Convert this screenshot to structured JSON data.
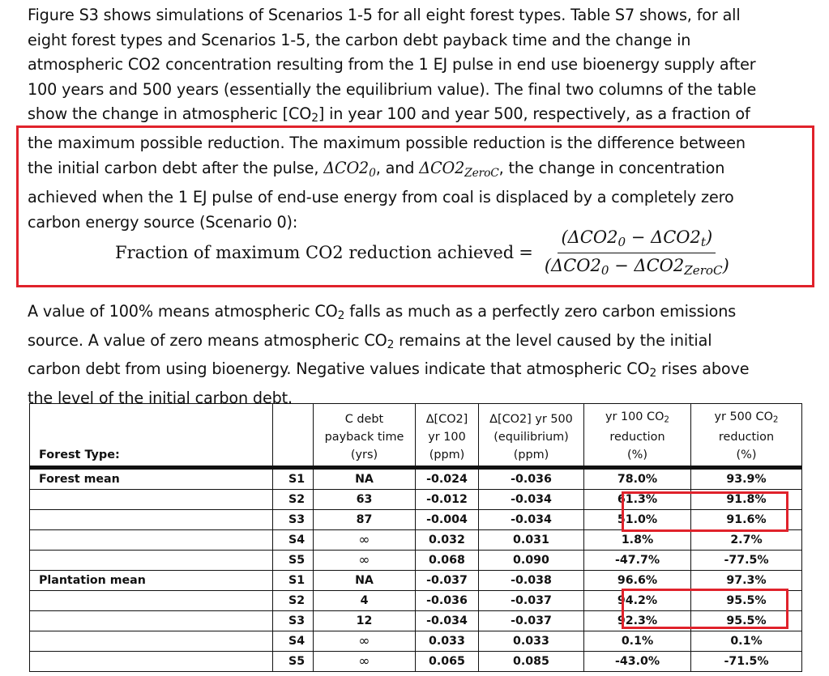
{
  "paragraph1": {
    "line1": "Figure S3 shows simulations of Scenarios 1-5 for all eight forest types.  Table S7 shows, for all",
    "line2": "eight forest types and Scenarios 1-5, the carbon debt payback time and the change in",
    "line3": "atmospheric CO2 concentration resulting from the 1 EJ pulse in end use bioenergy supply after",
    "line4": "100 years and 500 years (essentially the equilibrium value).  The final two columns of the table",
    "line5_a": "show the change in atmospheric [CO",
    "line5_sub": "2",
    "line5_b": "] in year 100 and year 500, respectively, as a fraction of",
    "line6": "the maximum possible reduction.  The maximum possible reduction is the difference between",
    "line7_a": "the initial carbon debt after the pulse, ",
    "line7_b": ", and ",
    "line7_c": ", the change in concentration",
    "line8": "achieved when the 1 EJ pulse of end-use energy from coal is displaced by a completely zero",
    "line9": "carbon energy source (Scenario 0):"
  },
  "math": {
    "dco2": "ΔCO2",
    "sub_zero": "0",
    "sub_zeroc": "ZeroC",
    "sub_t": "t",
    "minus": "−",
    "lparen": "(",
    "rparen": ")"
  },
  "formula": {
    "label": "Fraction of maximum CO2 reduction achieved",
    "equals": "="
  },
  "paragraph2": {
    "line1_a": "A value of 100% means atmospheric CO",
    "line1_sub": "2",
    "line1_b": " falls as much as a perfectly zero carbon emissions",
    "line2_a": "source.  A value of zero means atmospheric CO",
    "line2_sub": "2",
    "line2_b": " remains at the level caused by the initial",
    "line3_a": "carbon debt from using bioenergy.  Negative values indicate that atmospheric CO",
    "line3_sub": "2",
    "line3_b": " rises above",
    "line4": "the level of the initial carbon debt."
  },
  "table": {
    "headers": {
      "forest_type": "Forest Type:",
      "payback_l1": "C debt",
      "payback_l2": "payback time",
      "payback_l3": "(yrs)",
      "d100_l1": "Δ[CO2]",
      "d100_l2": "yr 100",
      "d100_l3": "(ppm)",
      "d500_l1": "Δ[CO2] yr 500",
      "d500_l2": "(equilibrium)",
      "d500_l3": "(ppm)",
      "r100_l1a": "yr 100 CO",
      "r100_l1sub": "2",
      "r100_l2": "reduction",
      "r100_l3": "(%)",
      "r500_l1a": "yr 500 CO",
      "r500_l1sub": "2",
      "r500_l2": "reduction",
      "r500_l3": "(%)"
    },
    "rows": [
      {
        "forest": "Forest mean",
        "scenario": "S1",
        "payback": "NA",
        "d100": "-0.024",
        "d500": "-0.036",
        "r100": "78.0%",
        "r500": "93.9%"
      },
      {
        "forest": "",
        "scenario": "S2",
        "payback": "63",
        "d100": "-0.012",
        "d500": "-0.034",
        "r100": "61.3%",
        "r500": "91.8%"
      },
      {
        "forest": "",
        "scenario": "S3",
        "payback": "87",
        "d100": "-0.004",
        "d500": "-0.034",
        "r100": "51.0%",
        "r500": "91.6%"
      },
      {
        "forest": "",
        "scenario": "S4",
        "payback": "∞",
        "d100": "0.032",
        "d500": "0.031",
        "r100": "1.8%",
        "r500": "2.7%"
      },
      {
        "forest": "",
        "scenario": "S5",
        "payback": "∞",
        "d100": "0.068",
        "d500": "0.090",
        "r100": "-47.7%",
        "r500": "-77.5%"
      },
      {
        "forest": "Plantation mean",
        "scenario": "S1",
        "payback": "NA",
        "d100": "-0.037",
        "d500": "-0.038",
        "r100": "96.6%",
        "r500": "97.3%"
      },
      {
        "forest": "",
        "scenario": "S2",
        "payback": "4",
        "d100": "-0.036",
        "d500": "-0.037",
        "r100": "94.2%",
        "r500": "95.5%"
      },
      {
        "forest": "",
        "scenario": "S3",
        "payback": "12",
        "d100": "-0.034",
        "d500": "-0.037",
        "r100": "92.3%",
        "r500": "95.5%"
      },
      {
        "forest": "",
        "scenario": "S4",
        "payback": "∞",
        "d100": "0.033",
        "d500": "0.033",
        "r100": "0.1%",
        "r500": "0.1%"
      },
      {
        "forest": "",
        "scenario": "S5",
        "payback": "∞",
        "d100": "0.065",
        "d500": "0.085",
        "r100": "-43.0%",
        "r500": "-71.5%"
      }
    ]
  },
  "colors": {
    "highlight": "#e0222b",
    "text": "#111111"
  }
}
